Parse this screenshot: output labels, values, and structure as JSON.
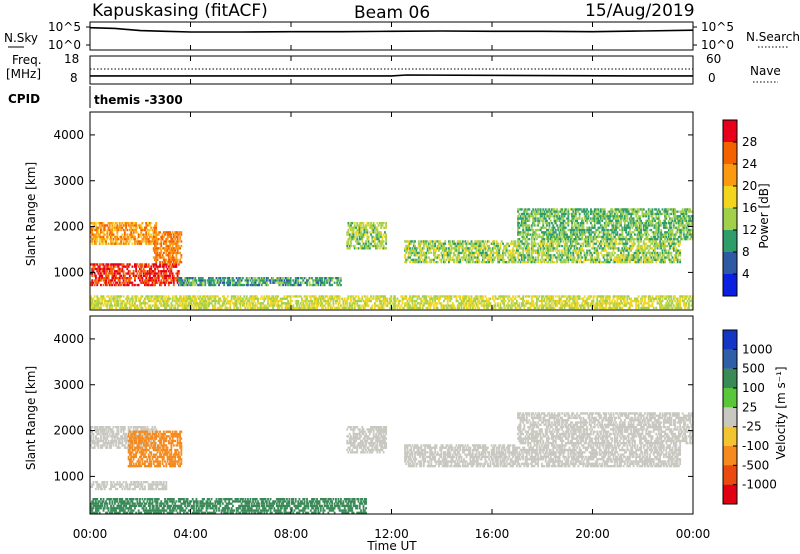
{
  "header": {
    "station": "Kapuskasing (fitACF)",
    "beam": "Beam 06",
    "date": "15/Aug/2019"
  },
  "noise_panel": {
    "left_label": "N.Sky",
    "right_label": "N.Search",
    "ticks": [
      "10^5",
      "10^0"
    ]
  },
  "freq_panel": {
    "left_label_1": "Freq.",
    "left_label_2": "[MHz]",
    "left_ticks": [
      "18",
      "8"
    ],
    "right_label": "Nave",
    "right_ticks": [
      "60",
      "0"
    ]
  },
  "cpid": {
    "label": "CPID",
    "value": "themis -3300"
  },
  "x_axis": {
    "label": "Time UT",
    "ticks": [
      "00:00",
      "04:00",
      "08:00",
      "12:00",
      "16:00",
      "20:00",
      "00:00"
    ]
  },
  "power_panel": {
    "ylabel": "Slant Range [km]",
    "yticks": [
      "4000",
      "3000",
      "2000",
      "1000"
    ],
    "colorbar_label": "Power [dB]",
    "colorbar_ticks": [
      "28",
      "24",
      "20",
      "16",
      "12",
      "8",
      "4"
    ],
    "colors": [
      "#e8001a",
      "#f46200",
      "#fb9a10",
      "#f2d51c",
      "#a3d04a",
      "#2e9d6a",
      "#2e5aa3",
      "#0b20e0"
    ]
  },
  "velocity_panel": {
    "ylabel": "Slant Range [km]",
    "yticks": [
      "4000",
      "3000",
      "2000",
      "1000"
    ],
    "colorbar_label": "Velocity [m s⁻¹]",
    "colorbar_ticks": [
      "1000",
      "500",
      "100",
      "25",
      "-25",
      "-100",
      "-500",
      "-1000"
    ],
    "colors": [
      "#1336c4",
      "#2f5fa6",
      "#3a8a58",
      "#58c83a",
      "#c8c8c0",
      "#f3c432",
      "#f58a1e",
      "#ea4a10",
      "#e00012"
    ]
  },
  "chart_data": [
    {
      "type": "line",
      "title": "N.Sky / N.Search",
      "x": [
        0,
        1,
        2,
        3,
        4,
        6,
        8,
        10,
        12,
        14,
        16,
        18,
        20,
        22,
        24
      ],
      "series": [
        {
          "name": "N.Sky",
          "values": [
            4.8,
            4.6,
            4.0,
            3.8,
            3.6,
            3.6,
            3.7,
            3.7,
            3.8,
            3.9,
            3.8,
            3.8,
            3.7,
            3.9,
            4.1
          ]
        }
      ],
      "xlabel": "Time UT",
      "ylim": [
        0,
        5
      ]
    },
    {
      "type": "line",
      "title": "Freq. / Nave",
      "x": [
        0,
        12,
        12.6,
        21.6,
        24
      ],
      "series": [
        {
          "name": "Freq.",
          "values": [
            10.3,
            10.3,
            10.8,
            10.3,
            10.3
          ]
        },
        {
          "name": "Nave",
          "values": [
            30,
            30,
            30,
            30,
            30
          ]
        }
      ],
      "ylim": [
        8,
        18
      ]
    },
    {
      "type": "heatmap",
      "title": "Power [dB]",
      "x_range": [
        0,
        24
      ],
      "y_range": [
        180,
        4500
      ],
      "xlabel": "Time UT",
      "ylabel": "Slant Range [km]",
      "regions": [
        {
          "t0": 0.0,
          "t1": 2.6,
          "r0": 1600,
          "r1": 2100,
          "value": 20
        },
        {
          "t0": 0.0,
          "t1": 3.5,
          "r0": 700,
          "r1": 1200,
          "value": 26
        },
        {
          "t0": 2.5,
          "t1": 3.6,
          "r0": 1200,
          "r1": 1900,
          "value": 22
        },
        {
          "t0": 3.5,
          "t1": 10.0,
          "r0": 700,
          "r1": 900,
          "value": 8
        },
        {
          "t0": 0.0,
          "t1": 24.0,
          "r0": 200,
          "r1": 500,
          "value": 14
        },
        {
          "t0": 10.2,
          "t1": 11.8,
          "r0": 1500,
          "r1": 2100,
          "value": 12
        },
        {
          "t0": 12.5,
          "t1": 23.5,
          "r0": 1200,
          "r1": 1700,
          "value": 12
        },
        {
          "t0": 17.0,
          "t1": 24.0,
          "r0": 1700,
          "r1": 2400,
          "value": 10
        }
      ]
    },
    {
      "type": "heatmap",
      "title": "Velocity [m s⁻¹]",
      "x_range": [
        0,
        24
      ],
      "y_range": [
        180,
        4500
      ],
      "xlabel": "Time UT",
      "ylabel": "Slant Range [km]",
      "regions": [
        {
          "t0": 0.0,
          "t1": 2.6,
          "r0": 1600,
          "r1": 2100,
          "value": 0
        },
        {
          "t0": 0.0,
          "t1": 3.0,
          "r0": 700,
          "r1": 900,
          "value": 0
        },
        {
          "t0": 1.5,
          "t1": 3.6,
          "r0": 1200,
          "r1": 2000,
          "value": -200
        },
        {
          "t0": 0.0,
          "t1": 11.0,
          "r0": 180,
          "r1": 500,
          "value": 70
        },
        {
          "t0": 10.2,
          "t1": 11.8,
          "r0": 1500,
          "r1": 2100,
          "value": 0
        },
        {
          "t0": 12.5,
          "t1": 23.5,
          "r0": 1200,
          "r1": 1700,
          "value": 0
        },
        {
          "t0": 17.0,
          "t1": 24.0,
          "r0": 1700,
          "r1": 2400,
          "value": 0
        }
      ]
    }
  ]
}
